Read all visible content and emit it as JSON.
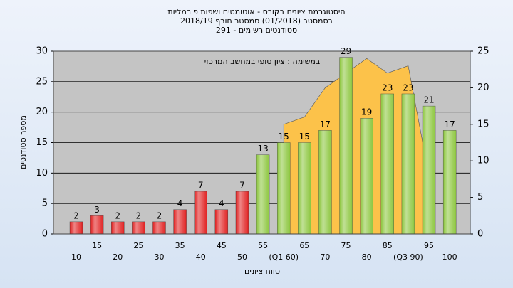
{
  "chart_data": {
    "type": "bar",
    "title": "היסטוגרמת ציונים בקורס - אוטומטים ושפות פורמליות",
    "subtitle": "בסמסטר  (01/2018)  סמסטר חורף  2018/19",
    "subtitle2": "סטודנטים רשומים - 291",
    "annotation": "במשימה : ציון סופי במחשב המרכזי",
    "xlabel": "טווח ציונים",
    "ylabel": "מספר סטודנטים",
    "categories": [
      "10",
      "15",
      "20",
      "25",
      "30",
      "35",
      "40",
      "45",
      "50",
      "55",
      "(Q1 60)",
      "65",
      "70",
      "75",
      "80",
      "85",
      "(Q3 90)",
      "95",
      "100"
    ],
    "series": [
      {
        "type": "bar",
        "values": [
          2,
          3,
          2,
          2,
          2,
          4,
          7,
          4,
          7,
          13,
          15,
          15,
          17,
          29,
          19,
          23,
          23,
          21,
          17
        ],
        "colors": [
          "#e02020",
          "#e02020",
          "#e02020",
          "#e02020",
          "#e02020",
          "#e02020",
          "#e02020",
          "#e02020",
          "#e02020",
          "#8cc63e",
          "#8cc63e",
          "#8cc63e",
          "#8cc63e",
          "#8cc63e",
          "#8cc63e",
          "#8cc63e",
          "#8cc63e",
          "#8cc63e",
          "#8cc63e"
        ]
      },
      {
        "type": "area",
        "axis": "y2",
        "color": "#fcc24a",
        "values": [
          null,
          null,
          null,
          null,
          null,
          null,
          null,
          null,
          null,
          null,
          15,
          16,
          20,
          22,
          24,
          22,
          23,
          8,
          null
        ]
      }
    ],
    "ylim": [
      0,
      30
    ],
    "yticks": [
      0,
      5,
      10,
      15,
      20,
      25,
      30
    ],
    "y2lim": [
      0,
      25
    ],
    "y2ticks": [
      0,
      5,
      10,
      15,
      20,
      25
    ],
    "grid": true
  }
}
